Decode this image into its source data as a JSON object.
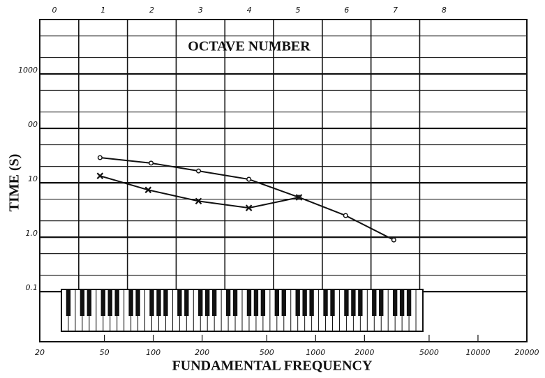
{
  "chart_data": {
    "type": "line",
    "title": "OCTAVE NUMBER",
    "x_label": "FUNDAMENTAL FREQUENCY",
    "y_label": "TIME (S)",
    "x_scale": "log",
    "y_scale": "log",
    "xlim": [
      20,
      20000
    ],
    "xticks": [
      20,
      50,
      100,
      200,
      500,
      1000,
      2000,
      5000,
      10000,
      20000
    ],
    "ylim": [
      0.012,
      10000
    ],
    "yticks": [
      0.1,
      {
        "value": 1,
        "label": "1.0"
      },
      10,
      {
        "value": 100,
        "label": "00"
      },
      1000
    ],
    "x2lim": [
      -0.3,
      9.7
    ],
    "x2ticks": [
      0,
      1,
      2,
      3,
      4,
      5,
      6,
      7,
      8
    ],
    "grid": true,
    "series": [
      {
        "color": "#111111",
        "marker": "circle",
        "x": [
          47,
          97,
          190,
          388,
          790,
          1530,
          3030
        ],
        "values": [
          29,
          23,
          16.5,
          11.6,
          5.4,
          2.5,
          0.89
        ]
      },
      {
        "color": "#111111",
        "marker": "x",
        "x": [
          47,
          93,
          190,
          388,
          790
        ],
        "values": [
          13.4,
          7.4,
          4.6,
          3.45,
          5.4
        ]
      }
    ]
  }
}
